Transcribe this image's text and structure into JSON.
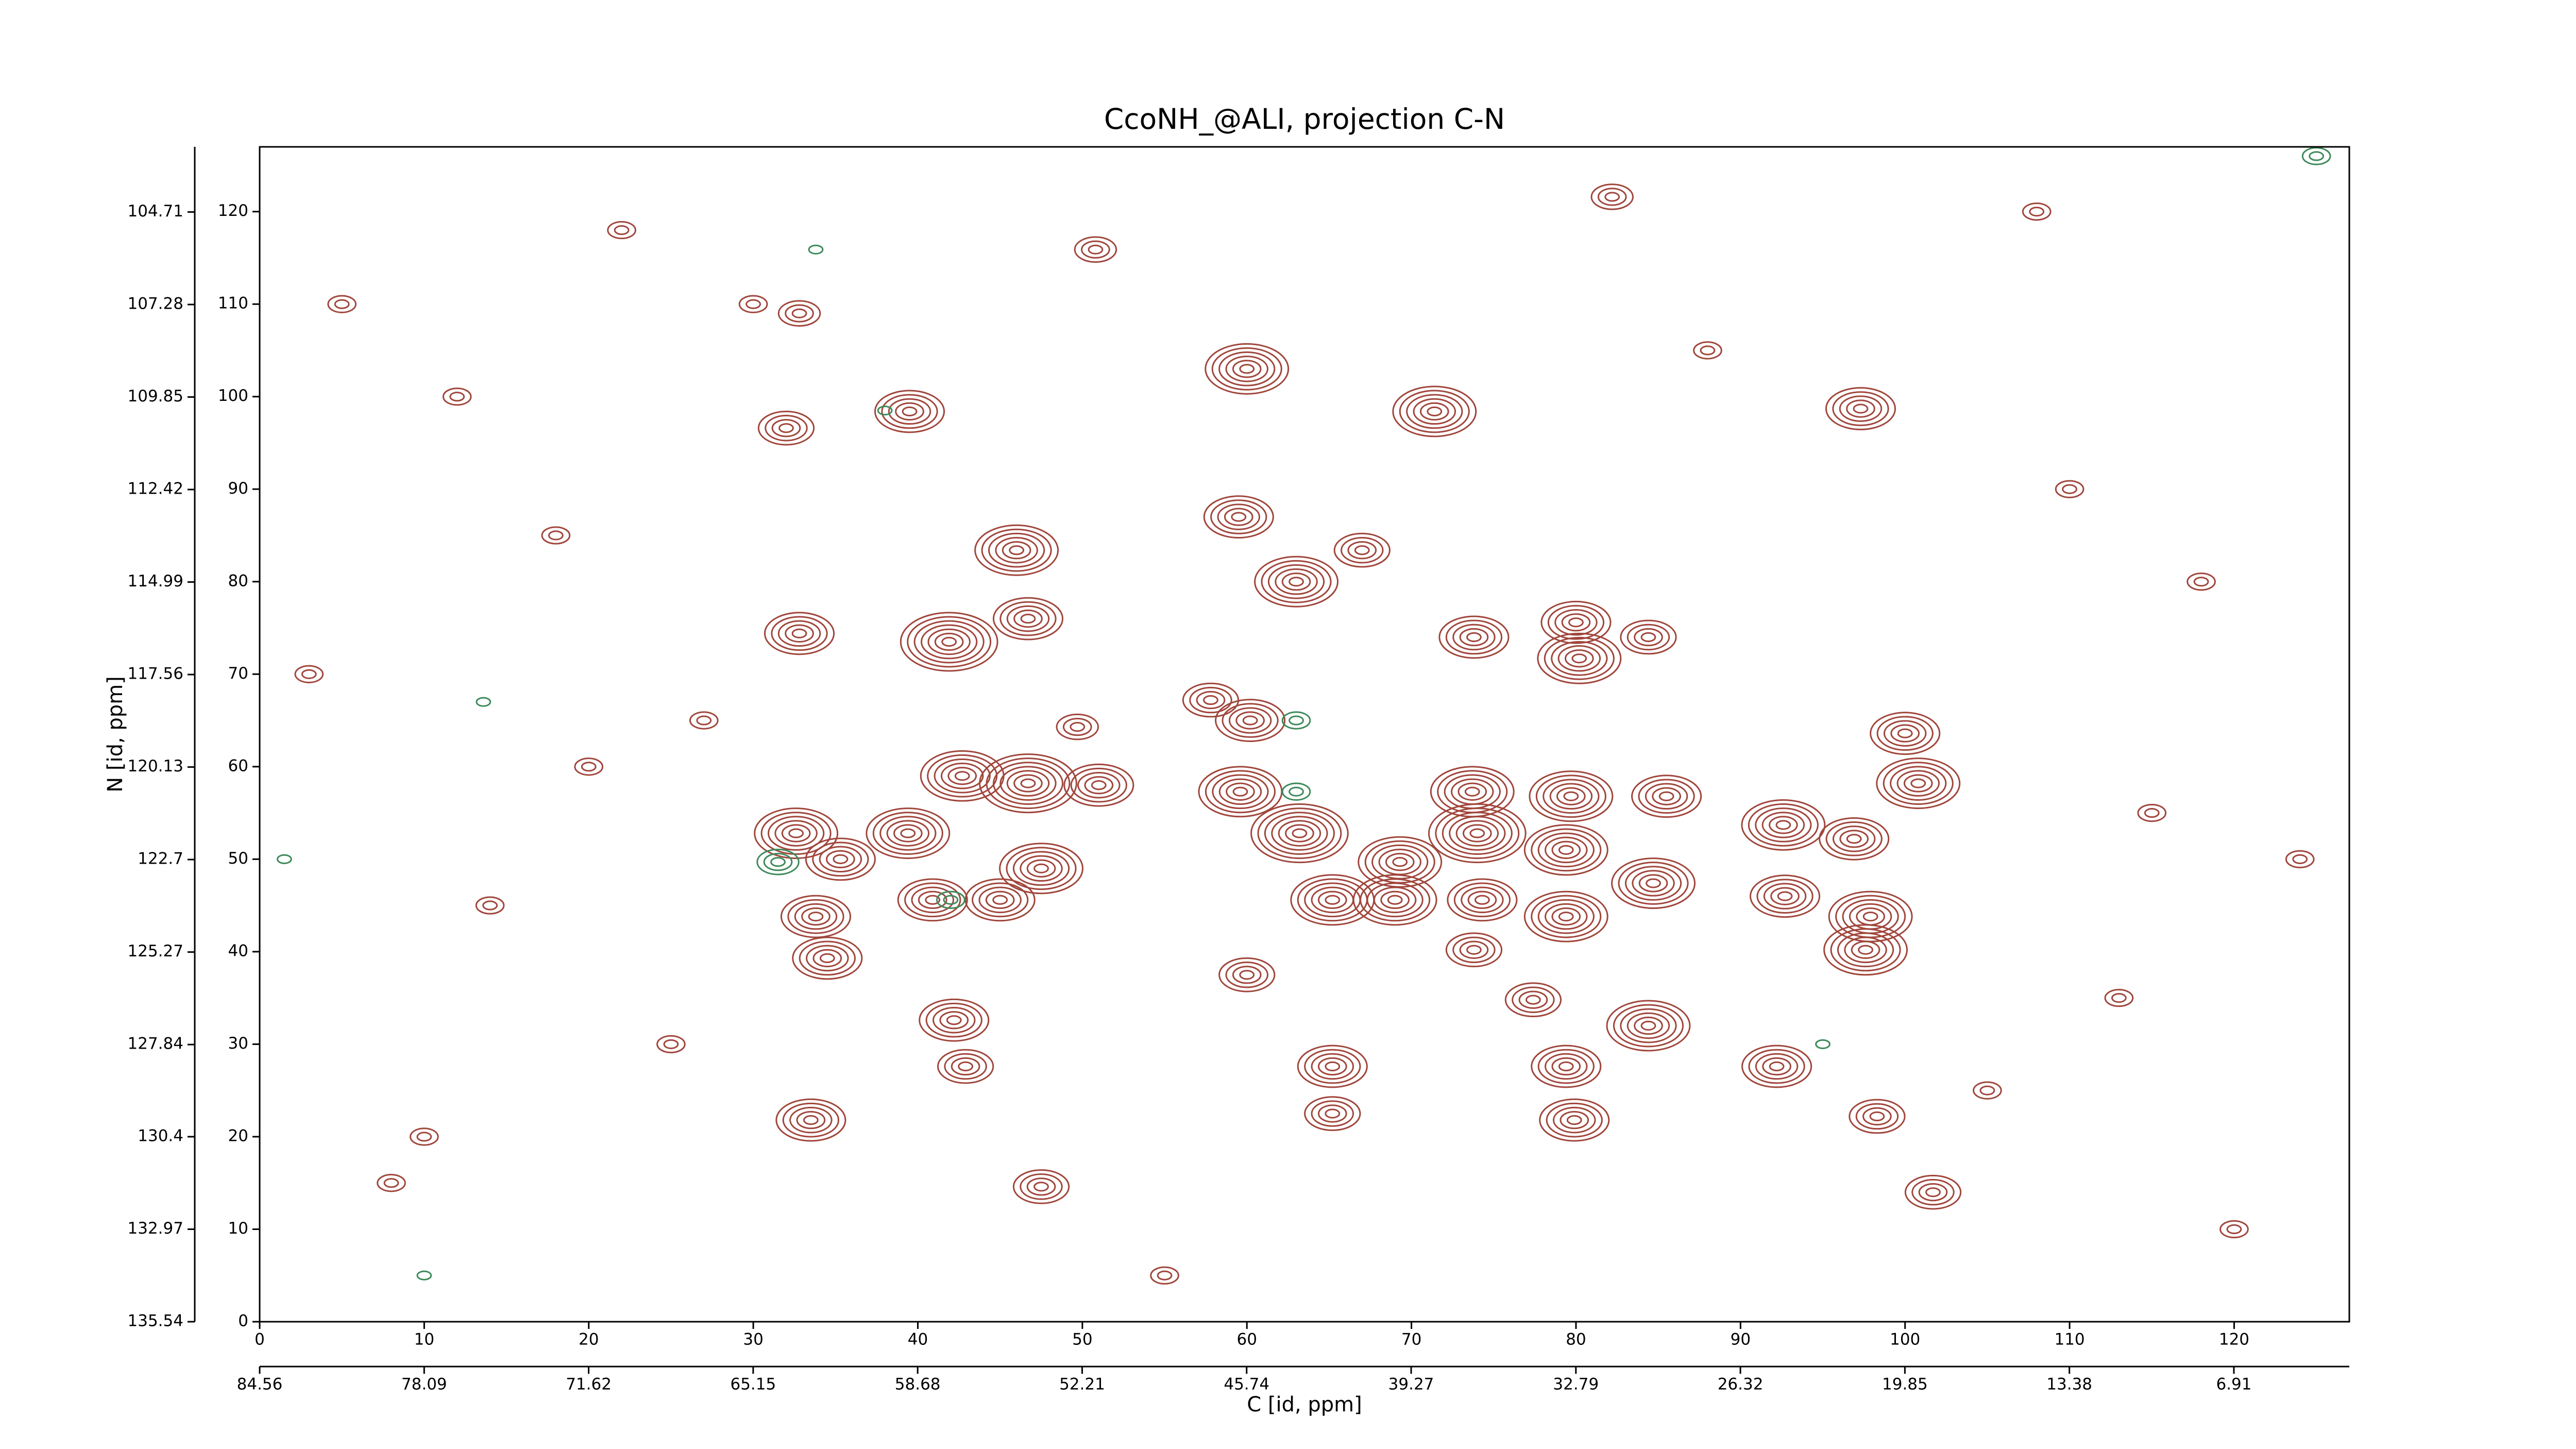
{
  "chart_data": {
    "type": "contour",
    "title": "CcoNH_@ALI, projection C-N",
    "xlabel": "C [id, ppm]",
    "ylabel": "N [id, ppm]",
    "xlim": [
      0,
      127
    ],
    "xticks": [
      0,
      10,
      20,
      30,
      40,
      50,
      60,
      70,
      80,
      90,
      100,
      110,
      120
    ],
    "ylim": [
      0,
      127
    ],
    "yticks": [
      0,
      10,
      20,
      30,
      40,
      50,
      60,
      70,
      80,
      90,
      100,
      110,
      120
    ],
    "x2lim": [
      84.56,
      2.37
    ],
    "x2ticks": [
      84.56,
      78.09,
      71.62,
      65.15,
      58.68,
      52.21,
      45.74,
      39.27,
      32.79,
      26.32,
      19.85,
      13.38,
      6.91
    ],
    "y2lim": [
      135.54,
      102.9
    ],
    "y2ticks": [
      135.54,
      132.97,
      130.4,
      127.84,
      125.27,
      122.7,
      120.13,
      117.56,
      114.99,
      112.42,
      109.85,
      107.28,
      104.71
    ],
    "series": [
      {
        "color": "#a0463c",
        "x": [
          60,
          71.4,
          39.5,
          32,
          97.3,
          46,
          59.5,
          67,
          63,
          46.7,
          41.9,
          73.8,
          80,
          80.2,
          84.4,
          32.8,
          57.8,
          60.2,
          49.7,
          100,
          100.8,
          59.6,
          46.7,
          42.7,
          51,
          73.7,
          79.7,
          85.5,
          32.6,
          35.3,
          39.4,
          40.9,
          47.5,
          45,
          74,
          79.4,
          84.7,
          92.6,
          96.9,
          69.3,
          63.2,
          69,
          65.2,
          74.3,
          79.4,
          92.7,
          97.9,
          33.8,
          34.5,
          97.6,
          73.8,
          60,
          42.2,
          77.4,
          84.4,
          42.9,
          65.2,
          79.4,
          92.2,
          65.2,
          79.9,
          33.5,
          98.3,
          47.5,
          101.7,
          32.8,
          82.2,
          50.8,
          12,
          5,
          20,
          25,
          110,
          118,
          14,
          8,
          22,
          105,
          115,
          120,
          3,
          18,
          108,
          113,
          55,
          88,
          27,
          124,
          10,
          30
        ],
        "y": [
          103,
          98.4,
          98.4,
          96.6,
          98.7,
          83.4,
          87,
          83.4,
          80,
          76,
          73.5,
          74,
          75.6,
          71.7,
          74,
          74.4,
          67.2,
          65,
          64.3,
          63.6,
          58.2,
          57.3,
          58.2,
          59,
          58,
          57.3,
          56.8,
          56.8,
          52.8,
          50,
          52.8,
          45.6,
          49,
          45.6,
          52.8,
          51,
          47.4,
          53.7,
          52.2,
          49.7,
          52.8,
          45.6,
          45.6,
          45.6,
          43.8,
          46,
          43.8,
          43.8,
          39.3,
          40.2,
          40.2,
          37.5,
          32.6,
          34.8,
          32,
          27.6,
          27.6,
          27.6,
          27.6,
          22.5,
          21.8,
          21.8,
          22.2,
          14.6,
          14,
          109,
          121.6,
          115.9,
          100,
          110,
          60,
          30,
          90,
          80,
          45,
          15,
          118,
          25,
          55,
          10,
          70,
          85,
          120,
          35,
          5,
          105,
          65,
          50,
          20,
          110
        ],
        "values": [
          6,
          6,
          5,
          4,
          5,
          6,
          5,
          4,
          6,
          5,
          7,
          5,
          5,
          6,
          4,
          5,
          4,
          5,
          3,
          5,
          6,
          6,
          7,
          6,
          5,
          6,
          6,
          5,
          6,
          5,
          6,
          5,
          6,
          5,
          7,
          6,
          6,
          6,
          5,
          6,
          7,
          6,
          6,
          5,
          6,
          5,
          6,
          5,
          5,
          6,
          4,
          4,
          5,
          4,
          6,
          4,
          5,
          5,
          5,
          4,
          5,
          5,
          4,
          4,
          4,
          3,
          3,
          3,
          2,
          2,
          2,
          2,
          2,
          2,
          2,
          2,
          2,
          2,
          2,
          2,
          2,
          2,
          2,
          2,
          2,
          2,
          2,
          2,
          2,
          2
        ]
      },
      {
        "color": "#3d8a5a",
        "x": [
          31.5,
          63,
          63,
          13.6,
          33.8,
          38,
          42,
          125,
          1.5,
          10,
          95
        ],
        "y": [
          49.7,
          57.3,
          65,
          67,
          115.9,
          98.5,
          45.6,
          126,
          50,
          5,
          30
        ],
        "values": [
          3,
          2,
          2,
          1,
          1,
          1,
          2,
          2,
          1,
          1,
          1
        ]
      }
    ]
  }
}
